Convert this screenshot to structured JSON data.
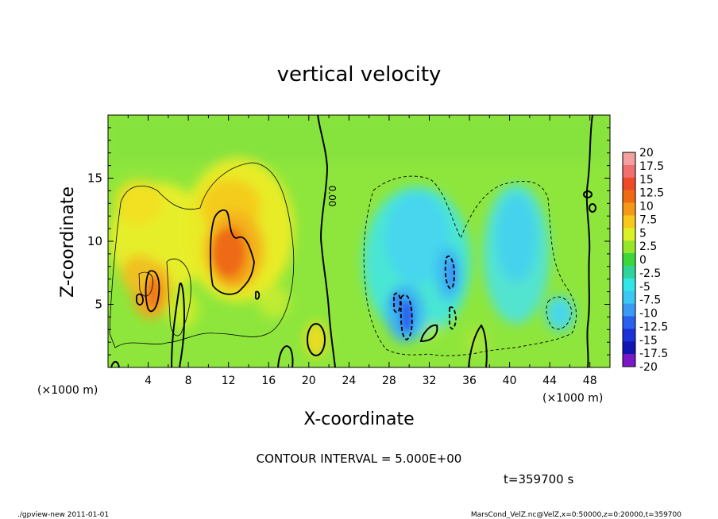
{
  "chart_data": {
    "type": "heatmap",
    "title": "vertical velocity",
    "xlabel": "X-coordinate",
    "ylabel": "Z-coordinate",
    "x_unit_left": "(×1000 m)",
    "x_unit_right": "(×1000 m)",
    "xlim": [
      0,
      50
    ],
    "ylim": [
      0,
      20
    ],
    "x_ticks": [
      4,
      8,
      12,
      16,
      20,
      24,
      28,
      32,
      36,
      40,
      44,
      48
    ],
    "y_ticks": [
      5,
      10,
      15
    ],
    "contour_interval_text": "CONTOUR INTERVAL = 5.000E+00",
    "time_text": "t=359700 s",
    "contour_label": "0.00",
    "colorbar": {
      "levels": [
        "20",
        "17.5",
        "15",
        "12.5",
        "10",
        "7.5",
        "5",
        "2.5",
        "0",
        "-2.5",
        "-5",
        "-7.5",
        "-10",
        "-12.5",
        "-15",
        "-17.5",
        "-20"
      ],
      "colors": [
        "#f4a0a0",
        "#f07070",
        "#ee4a2a",
        "#f06a12",
        "#f59a18",
        "#f8c81c",
        "#dcf028",
        "#98e628",
        "#3ad838",
        "#2ed49a",
        "#30e6e6",
        "#3cc8f4",
        "#3a9af4",
        "#2a60ee",
        "#1a32d8",
        "#1216b0",
        "#7a18c8"
      ]
    },
    "features": [
      {
        "kind": "updraft",
        "x": 12,
        "z": 10,
        "max": 12.5
      },
      {
        "kind": "updraft",
        "x": 4.5,
        "z": 7,
        "max": 10
      },
      {
        "kind": "updraft",
        "x": 20.5,
        "z": 2,
        "max": 5
      },
      {
        "kind": "downdraft",
        "x": 30,
        "z": 6,
        "min": -12.5
      },
      {
        "kind": "downdraft",
        "x": 34,
        "z": 8,
        "min": -10
      },
      {
        "kind": "downdraft",
        "x": 42,
        "z": 10,
        "min": -7.5
      }
    ]
  },
  "footer": {
    "left": "./gpview-new   2011-01-01",
    "right": "MarsCond_VelZ.nc@VelZ,x=0:50000,z=0:20000,t=359700"
  }
}
